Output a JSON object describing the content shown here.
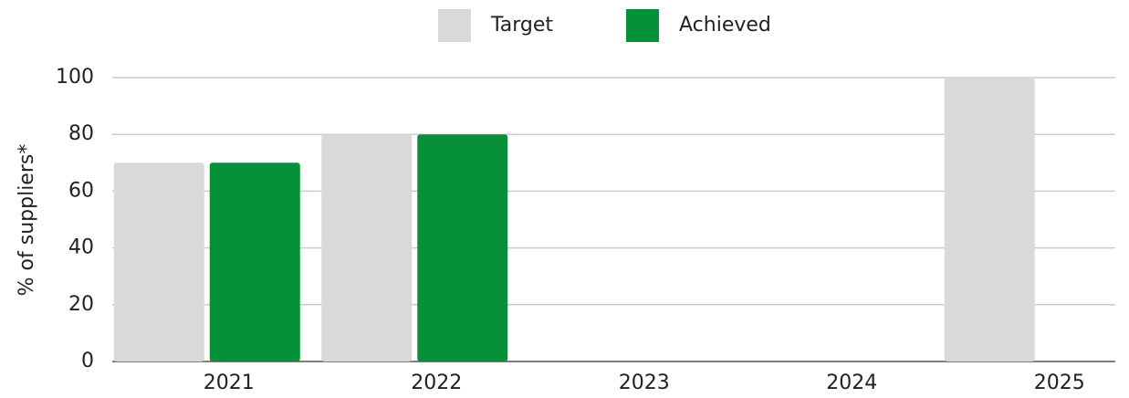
{
  "chart_data": {
    "type": "bar",
    "y_label": "% of suppliers*",
    "categories": [
      "2021",
      "2022",
      "2023",
      "2024",
      "2025"
    ],
    "series": [
      {
        "name": "Target",
        "color": "#d9d9d9",
        "values": [
          70,
          80,
          null,
          null,
          100
        ]
      },
      {
        "name": "Achieved",
        "color": "#07903a",
        "values": [
          70,
          80,
          null,
          null,
          null
        ]
      }
    ],
    "ylim": [
      0,
      100
    ],
    "yticks": [
      0,
      20,
      40,
      60,
      80,
      100
    ],
    "grid": true,
    "legend": "top"
  }
}
